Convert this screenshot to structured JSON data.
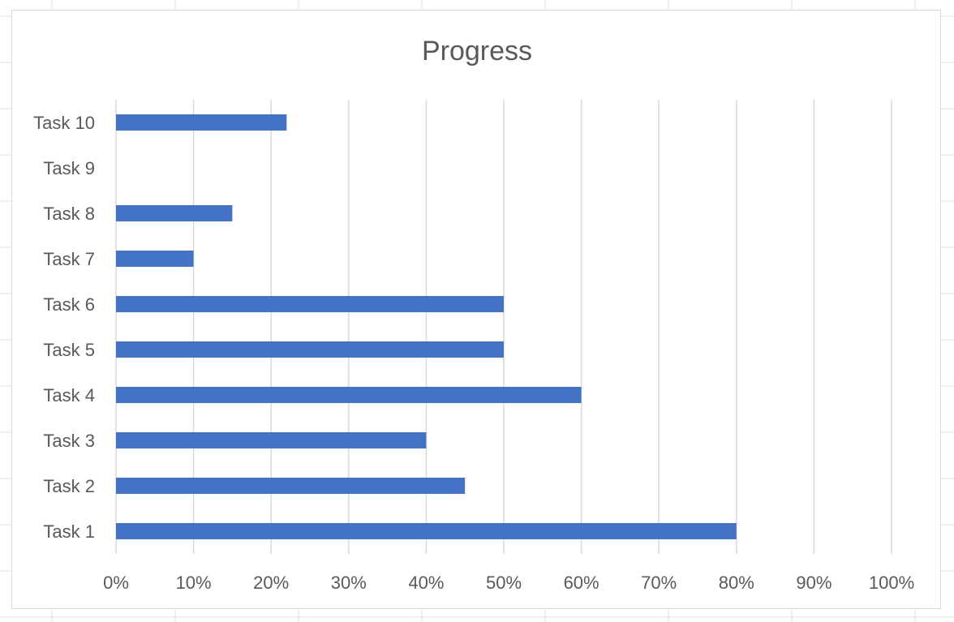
{
  "chart_data": {
    "type": "bar",
    "orientation": "horizontal",
    "title": "Progress",
    "categories": [
      "Task 1",
      "Task 2",
      "Task 3",
      "Task 4",
      "Task 5",
      "Task 6",
      "Task 7",
      "Task 8",
      "Task 9",
      "Task 10"
    ],
    "values": [
      0.8,
      0.45,
      0.4,
      0.6,
      0.5,
      0.5,
      0.1,
      0.15,
      0.0,
      0.22
    ],
    "xlim": [
      0,
      1
    ],
    "x_ticks": [
      "0%",
      "10%",
      "20%",
      "30%",
      "40%",
      "50%",
      "60%",
      "70%",
      "80%",
      "90%",
      "100%"
    ],
    "xlabel": "",
    "ylabel": "",
    "grid": "vertical",
    "legend": "none",
    "bar_color": "#4472C4"
  }
}
